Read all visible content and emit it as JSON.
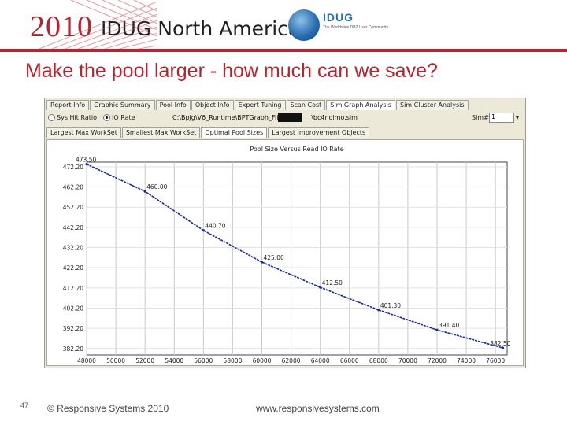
{
  "header": {
    "year": "2010",
    "conference": "IDUG North America",
    "logo_name": "IDUG",
    "logo_tagline": "The Worldwide DB2 User Community",
    "accent_color": "#b8232f"
  },
  "slide": {
    "title": "Make the pool larger  -  how much can we save?"
  },
  "app": {
    "tabs_top": [
      {
        "label": "Report Info"
      },
      {
        "label": "Graphic Summary"
      },
      {
        "label": "Pool Info"
      },
      {
        "label": "Object Info"
      },
      {
        "label": "Expert Tuning"
      },
      {
        "label": "Scan Cost"
      },
      {
        "label": "Sim Graph Analysis",
        "active": true
      },
      {
        "label": "Sim Cluster Analysis"
      }
    ],
    "radio_1": "Sys Hit Ratio",
    "radio_2": "IO Rate",
    "selected_radio": "IO Rate",
    "path": "C:\\Bpjg\\V6_Runtime\\BPTGraph_Files\\",
    "path_suffix": "\\bc4nolmo.sim",
    "sim_label": "Sim#",
    "sim_value": "1",
    "tabs_sub": [
      {
        "label": "Largest Max WorkSet"
      },
      {
        "label": "Smallest Max WorkSet"
      },
      {
        "label": "Optimal Pool Sizes",
        "active": true
      },
      {
        "label": "Largest Improvement Objects"
      }
    ]
  },
  "chart_data": {
    "type": "line",
    "title": "Pool Size Versus Read IO Rate",
    "x_ticks": [
      "48000",
      "50000",
      "52000",
      "54000",
      "56000",
      "58000",
      "60000",
      "62000",
      "64000",
      "66000",
      "68000",
      "70000",
      "72000",
      "74000",
      "76000"
    ],
    "y_ticks": [
      "472.20",
      "462.20",
      "452.20",
      "442.20",
      "432.20",
      "422.20",
      "412.20",
      "402.20",
      "392.20",
      "382.20"
    ],
    "xlim": [
      48000,
      76800
    ],
    "ylim": [
      379.0,
      474.5
    ],
    "series": [
      {
        "x": [
          48000,
          52000,
          56000,
          60000,
          64000,
          68000,
          72000,
          76500
        ],
        "y": [
          473.5,
          460.0,
          440.7,
          425.0,
          412.5,
          401.3,
          391.4,
          382.5
        ],
        "labels": [
          "473.50",
          "460.00",
          "440.70",
          "425.00",
          "412.50",
          "401.30",
          "391.40",
          "382.50"
        ]
      }
    ],
    "grid": true,
    "line_color": "#1a2a8c"
  },
  "footer": {
    "slide_number": "47",
    "copyright": "© Responsive Systems 2010",
    "url": "www.responsivesystems.com"
  }
}
